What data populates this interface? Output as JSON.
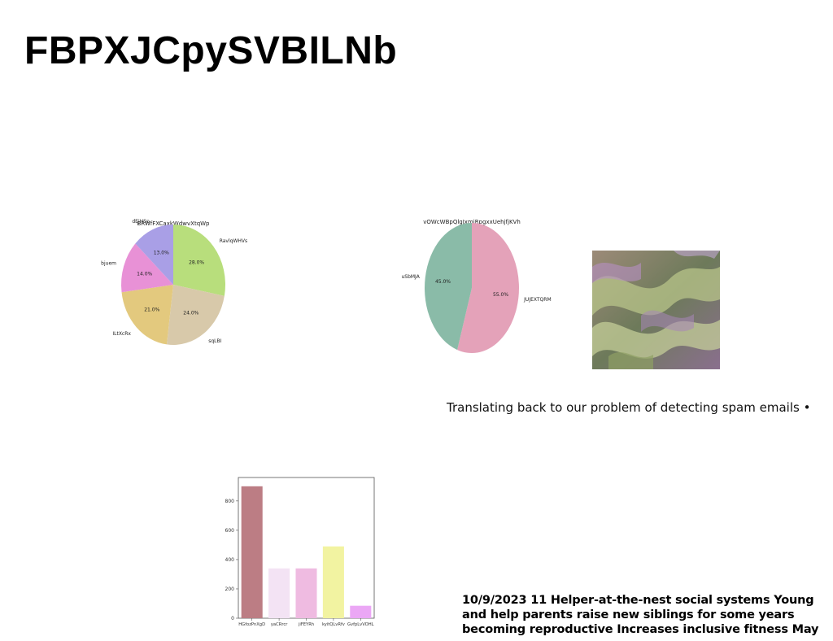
{
  "slide": {
    "title": "FBPXJCpySVBILNb",
    "caption": "Translating back to our problem of detecting spam emails •",
    "note": "10/9/2023 11 Helper-at-the-nest social systems Young and help parents raise new siblings for some years becoming reproductive Increases inclusive fitness May"
  },
  "chart_data": [
    {
      "type": "pie",
      "title": "BRWfFXCaxkWdwvXtqWp",
      "labels": [
        "RavlqWHVs",
        "sqLBI",
        "ILtXcRx",
        "bjuem",
        "dEjHSp"
      ],
      "values": [
        28.0,
        24.0,
        21.0,
        14.0,
        13.0
      ],
      "value_labels": [
        "28.0%",
        "24.0%",
        "21.0%",
        "14.0%",
        "13.0%"
      ],
      "colors": [
        "#b8de7c",
        "#d8c9aa",
        "#e3c97e",
        "#e891d6",
        "#a99fe6"
      ],
      "start_angle": 90,
      "direction": "clockwise"
    },
    {
      "type": "pie",
      "title": "vOWcWBpQlgJxmjRpgxxUehjfjKVh",
      "labels": [
        "JUJEXTQRM",
        "uSbMJA"
      ],
      "values": [
        55.0,
        45.0
      ],
      "value_labels": [
        "55.0%",
        "45.0%"
      ],
      "colors": [
        "#e4a2b9",
        "#8abba8"
      ],
      "start_angle": 90,
      "direction": "clockwise"
    },
    {
      "type": "bar",
      "categories": [
        "HGfozPnXgD",
        "yaCRrcr",
        "jiFEYRh",
        "kyitQLvRfv",
        "GvfpLvVOHL"
      ],
      "values": [
        900,
        340,
        340,
        490,
        85
      ],
      "colors": [
        "#bc7d84",
        "#f3e3f4",
        "#efbbe1",
        "#f2f3a1",
        "#eba7f5"
      ],
      "ylim": [
        0,
        960
      ],
      "yticks": [
        0,
        200,
        400,
        600,
        800
      ],
      "xlabel": "",
      "ylabel": ""
    }
  ]
}
